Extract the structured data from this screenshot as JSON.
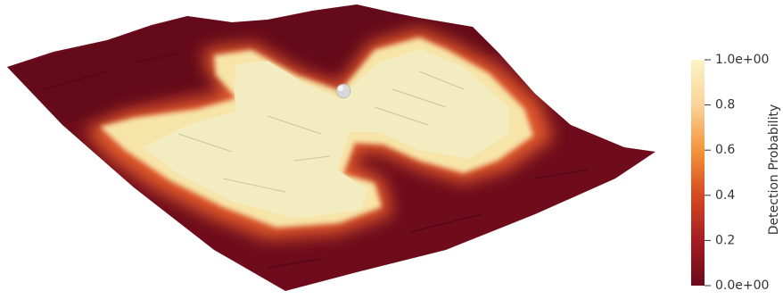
{
  "chart_data": {
    "type": "surface",
    "colorbar_title": "Detection Probability",
    "clim": [
      0,
      1
    ],
    "cticks": [
      {
        "value": 0,
        "label": "0.0e+00"
      },
      0.2,
      0.4,
      0.6,
      0.8,
      {
        "value": 1,
        "label": "1.0e+00"
      }
    ],
    "colormap": [
      "#6a0b1c",
      "#a51d22",
      "#d64a22",
      "#f4953a",
      "#f9d39a",
      "#fbf4c4"
    ]
  }
}
